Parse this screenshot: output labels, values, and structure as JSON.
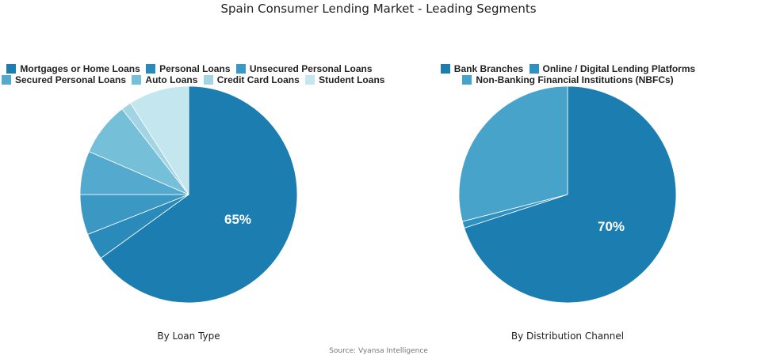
{
  "title": "Spain Consumer Lending Market - Leading Segments",
  "source": "Source: Vyansa Intelligence",
  "chart_data": [
    {
      "type": "pie",
      "title": "By Loan Type",
      "categories": [
        "Mortgages or Home Loans",
        "Personal Loans",
        "Unsecured Personal Loans",
        "Secured Personal Loans",
        "Auto Loans",
        "Credit Card Loans",
        "Student Loans"
      ],
      "values": [
        65,
        4,
        6,
        6.5,
        8,
        1.5,
        9
      ],
      "colors": [
        "#1c7eb0",
        "#2a8bba",
        "#3b98c3",
        "#54a9cf",
        "#76bfd9",
        "#a2d4e4",
        "#c4e7ef"
      ],
      "data_labels": {
        "Mortgages or Home Loans": "65%"
      },
      "legend_position": "top",
      "legend_rows": [
        [
          0,
          1,
          2
        ],
        [
          3,
          4,
          5,
          6
        ]
      ]
    },
    {
      "type": "pie",
      "title": "By Distribution Channel",
      "categories": [
        "Bank Branches",
        "Online / Digital Lending Platforms",
        "Non-Banking Financial Institutions (NBFCs)"
      ],
      "values": [
        70,
        1,
        29
      ],
      "colors": [
        "#1c7eb0",
        "#2f91c0",
        "#48a3ca"
      ],
      "data_labels": {
        "Bank Branches": "70%"
      },
      "legend_position": "top",
      "legend_rows": [
        [
          0,
          1
        ],
        [
          2
        ]
      ]
    }
  ],
  "charts": [
    {
      "subtitle": "By Loan Type",
      "label": "65%",
      "legend": [
        {
          "label": "Mortgages or Home Loans",
          "color": "#1c7eb0"
        },
        {
          "label": "Personal Loans",
          "color": "#2a8bba"
        },
        {
          "label": "Unsecured Personal Loans",
          "color": "#3b98c3"
        },
        {
          "label": "Secured Personal Loans",
          "color": "#54a9cf"
        },
        {
          "label": "Auto Loans",
          "color": "#76bfd9"
        },
        {
          "label": "Credit Card Loans",
          "color": "#a2d4e4"
        },
        {
          "label": "Student Loans",
          "color": "#c4e7ef"
        }
      ]
    },
    {
      "subtitle": "By Distribution Channel",
      "label": "70%",
      "legend": [
        {
          "label": "Bank Branches",
          "color": "#1c7eb0"
        },
        {
          "label": "Online / Digital Lending Platforms",
          "color": "#2f91c0"
        },
        {
          "label": "Non-Banking Financial Institutions (NBFCs)",
          "color": "#48a3ca"
        }
      ]
    }
  ]
}
